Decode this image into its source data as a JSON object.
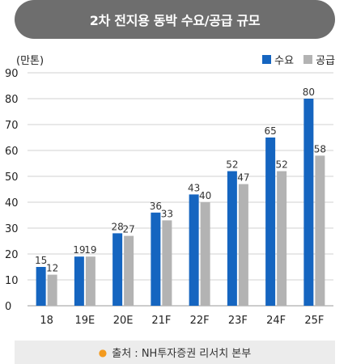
{
  "header": {
    "title": "2차 전지용 동박 수요/공급 규모"
  },
  "unit_label": "(만톤)",
  "source": {
    "icon": "bullet-dot-icon",
    "text": "출처 : NH투자증권 리서치 본부"
  },
  "colors": {
    "demand": "#1565c0",
    "supply": "#b3b3b3",
    "header_bg": "#6e6e6e",
    "accent": "#f39a1e"
  },
  "chart_data": {
    "type": "bar",
    "categories": [
      "18",
      "19E",
      "20E",
      "21F",
      "22F",
      "23F",
      "24F",
      "25F"
    ],
    "series": [
      {
        "name": "수요",
        "values": [
          15,
          19,
          28,
          36,
          43,
          52,
          65,
          80
        ]
      },
      {
        "name": "공급",
        "values": [
          12,
          19,
          27,
          33,
          40,
          47,
          52,
          58
        ]
      }
    ],
    "ylim": [
      0,
      90
    ],
    "yticks": [
      0,
      10,
      20,
      30,
      40,
      50,
      60,
      70,
      80,
      90
    ],
    "grid": true,
    "legend_position": "top-right"
  }
}
